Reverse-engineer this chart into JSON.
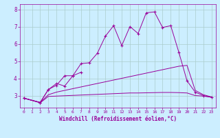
{
  "xlabel": "Windchill (Refroidissement éolien,°C)",
  "bg_color": "#cceeff",
  "line_color": "#990099",
  "grid_color": "#aacccc",
  "x_vals": [
    0,
    1,
    2,
    3,
    4,
    5,
    6,
    7,
    8,
    9,
    10,
    11,
    12,
    13,
    14,
    15,
    16,
    17,
    18,
    19,
    20,
    21,
    22,
    23
  ],
  "series1": [
    2.85,
    null,
    2.6,
    3.35,
    3.7,
    3.55,
    4.15,
    4.85,
    4.9,
    5.45,
    6.45,
    7.05,
    5.9,
    7.0,
    6.6,
    7.8,
    7.85,
    6.95,
    7.05,
    5.5,
    3.85,
    3.2,
    3.0,
    2.9
  ],
  "series2": [
    2.85,
    null,
    2.6,
    3.35,
    3.6,
    4.15,
    4.15,
    4.35,
    null,
    null,
    null,
    null,
    null,
    null,
    null,
    null,
    null,
    null,
    null,
    null,
    null,
    null,
    null,
    null
  ],
  "series3": [
    2.85,
    null,
    2.6,
    3.05,
    3.2,
    3.3,
    3.4,
    3.5,
    3.6,
    3.7,
    3.8,
    3.9,
    4.0,
    4.1,
    4.2,
    4.3,
    4.4,
    4.5,
    4.6,
    4.7,
    4.75,
    3.3,
    3.05,
    2.92
  ],
  "series4": [
    2.85,
    null,
    2.58,
    2.95,
    2.97,
    2.99,
    3.01,
    3.03,
    3.05,
    3.07,
    3.09,
    3.11,
    3.13,
    3.15,
    3.15,
    3.16,
    3.17,
    3.18,
    3.18,
    3.17,
    3.15,
    3.0,
    2.97,
    2.9
  ],
  "ylim": [
    2.3,
    8.3
  ],
  "yticks": [
    3,
    4,
    5,
    6,
    7,
    8
  ],
  "xticks": [
    0,
    1,
    2,
    3,
    4,
    5,
    6,
    7,
    8,
    9,
    10,
    11,
    12,
    13,
    14,
    15,
    16,
    17,
    18,
    19,
    20,
    21,
    22,
    23
  ]
}
